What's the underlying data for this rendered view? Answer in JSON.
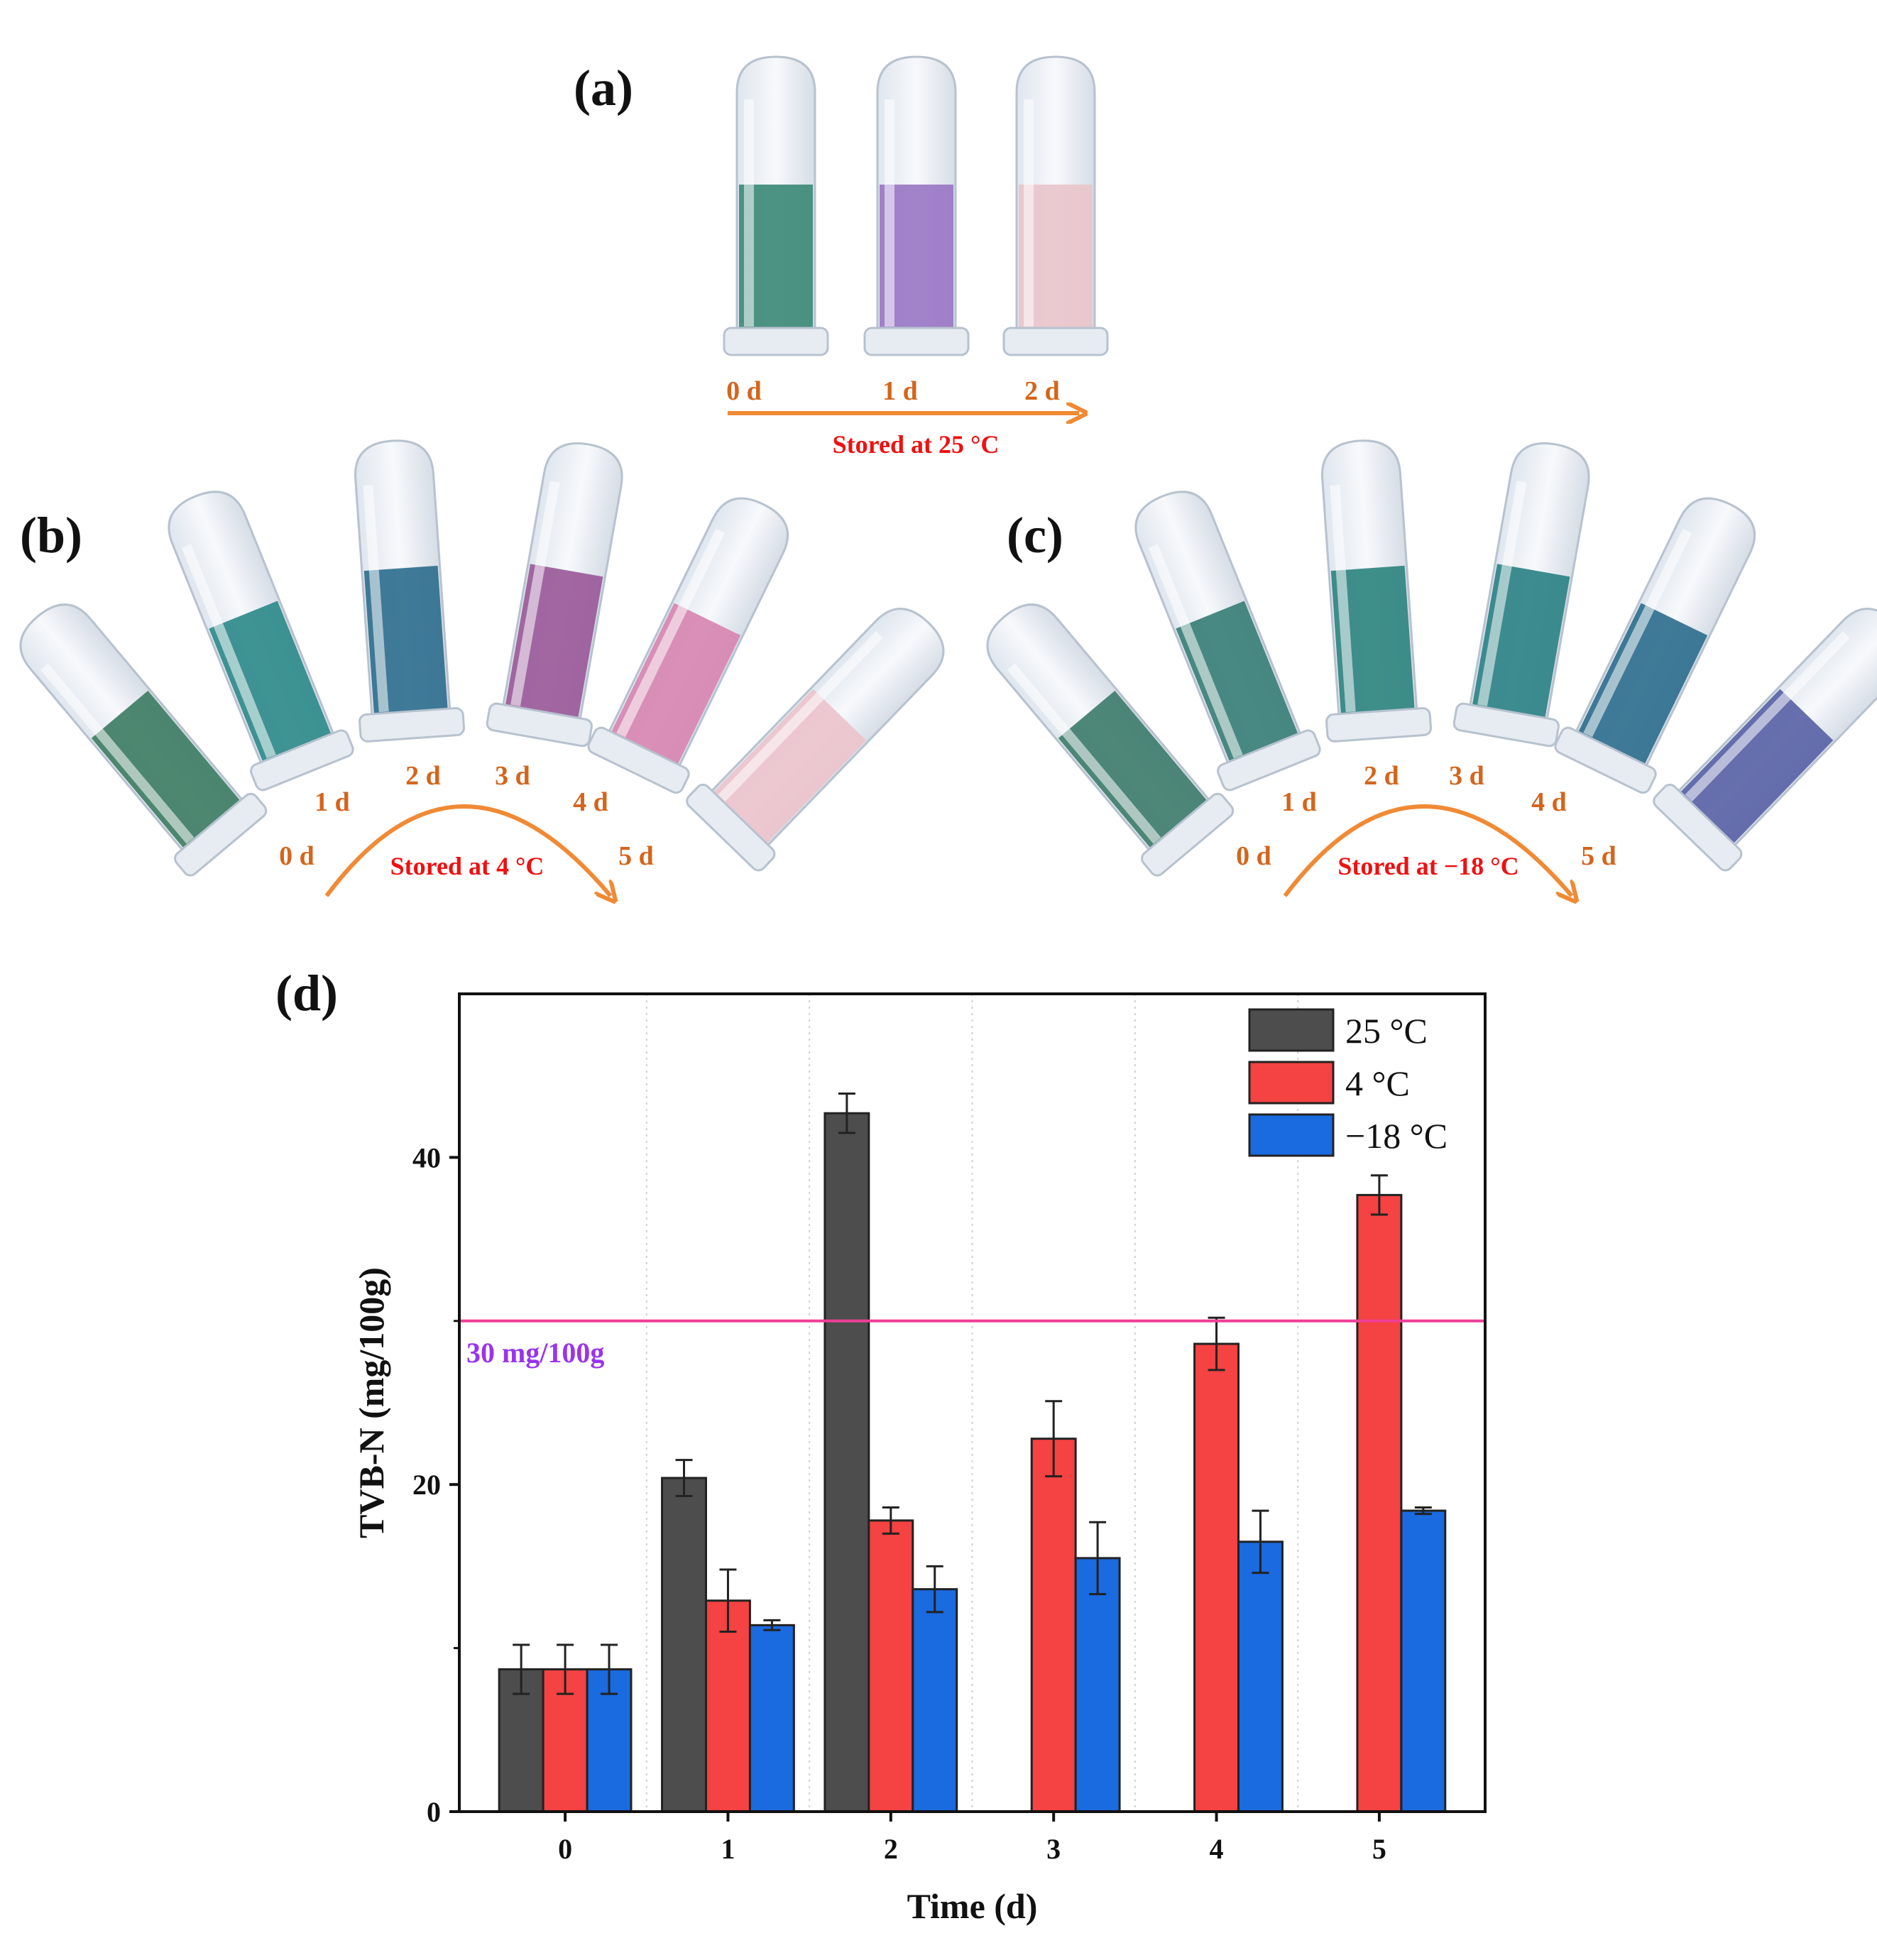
{
  "panels": {
    "a": {
      "label": "(a)",
      "store_label": "Stored at 25 °C",
      "days": [
        "0 d",
        "1 d",
        "2 d"
      ],
      "tube_colors": [
        "#3e8a78",
        "#9a77c4",
        "#e8c6cb"
      ]
    },
    "b": {
      "label": "(b)",
      "store_label": "Stored at 4 °C",
      "days": [
        "0 d",
        "1 d",
        "2 d",
        "3 d",
        "4 d",
        "5 d"
      ],
      "tube_colors": [
        "#3f7d64",
        "#2f8a8a",
        "#2f6f8e",
        "#9a5a99",
        "#d786b1",
        "#ecc3cc"
      ]
    },
    "c": {
      "label": "(c)",
      "store_label": "Stored at −18 °C",
      "days": [
        "0 d",
        "1 d",
        "2 d",
        "3 d",
        "4 d",
        "5 d"
      ],
      "tube_colors": [
        "#3f7d6c",
        "#3a7f78",
        "#2f8480",
        "#2c8286",
        "#2f6f8e",
        "#5a63a6"
      ]
    }
  },
  "chart_data": {
    "panel_label": "(d)",
    "type": "bar",
    "x": [
      0,
      1,
      2,
      3,
      4,
      5
    ],
    "categories": [
      "0",
      "1",
      "2",
      "3",
      "4",
      "5"
    ],
    "series": [
      {
        "name": "25 °C",
        "color": "#4d4d4d",
        "values": [
          8.7,
          20.4,
          42.7,
          null,
          null,
          null
        ],
        "errors": [
          1.5,
          1.1,
          1.2,
          null,
          null,
          null
        ]
      },
      {
        "name": "4 °C",
        "color": "#f54242",
        "values": [
          8.7,
          12.9,
          17.8,
          22.8,
          28.6,
          37.7
        ],
        "errors": [
          1.5,
          1.9,
          0.8,
          2.3,
          1.6,
          1.2
        ]
      },
      {
        "name": "−18 °C",
        "color": "#1a6ae0",
        "values": [
          8.7,
          11.4,
          13.6,
          15.5,
          16.5,
          18.4
        ],
        "errors": [
          1.5,
          0.3,
          1.4,
          2.2,
          1.9,
          0.2
        ]
      }
    ],
    "threshold": {
      "value": 30,
      "label": "30 mg/100g",
      "color": "#ee3f96"
    },
    "xlabel": "Time (d)",
    "ylabel": "TVB-N (mg/100g)",
    "ylim": [
      0,
      50
    ],
    "yticks": [
      0,
      20,
      40
    ],
    "legend_position": "top-right",
    "grid": "vertical dotted"
  }
}
